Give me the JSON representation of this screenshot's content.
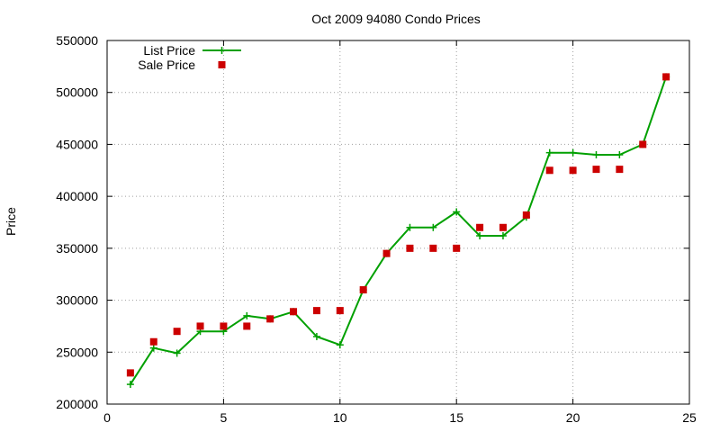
{
  "chart_data": {
    "type": "line",
    "title": "Oct 2009 94080 Condo Prices",
    "xlabel": "",
    "ylabel": "Price",
    "xlim": [
      0,
      25
    ],
    "ylim": [
      200000,
      550000
    ],
    "xticks": [
      0,
      5,
      10,
      15,
      20,
      25
    ],
    "yticks": [
      200000,
      250000,
      300000,
      350000,
      400000,
      450000,
      500000,
      550000
    ],
    "grid": true,
    "legend_position": "top-left",
    "series": [
      {
        "name": "List Price",
        "style": "line-plus",
        "color": "#00a000",
        "x": [
          1,
          2,
          3,
          4,
          5,
          6,
          7,
          8,
          9,
          10,
          11,
          12,
          13,
          14,
          15,
          16,
          17,
          18,
          19,
          20,
          21,
          22,
          23,
          24
        ],
        "y": [
          219000,
          254000,
          249000,
          270000,
          270000,
          285000,
          282000,
          289000,
          265000,
          257000,
          310000,
          345000,
          370000,
          370000,
          385000,
          362000,
          362000,
          380000,
          442000,
          442000,
          440000,
          440000,
          450000,
          515000
        ]
      },
      {
        "name": "Sale Price",
        "style": "square-points",
        "color": "#cc0000",
        "x": [
          1,
          2,
          3,
          4,
          5,
          6,
          7,
          8,
          9,
          10,
          11,
          12,
          13,
          14,
          15,
          16,
          17,
          18,
          19,
          20,
          21,
          22,
          23,
          24
        ],
        "y": [
          230000,
          260000,
          270000,
          275000,
          275000,
          275000,
          282000,
          289000,
          290000,
          290000,
          310000,
          345000,
          350000,
          350000,
          350000,
          370000,
          370000,
          382000,
          425000,
          425000,
          426000,
          426000,
          450000,
          515000
        ]
      }
    ]
  }
}
